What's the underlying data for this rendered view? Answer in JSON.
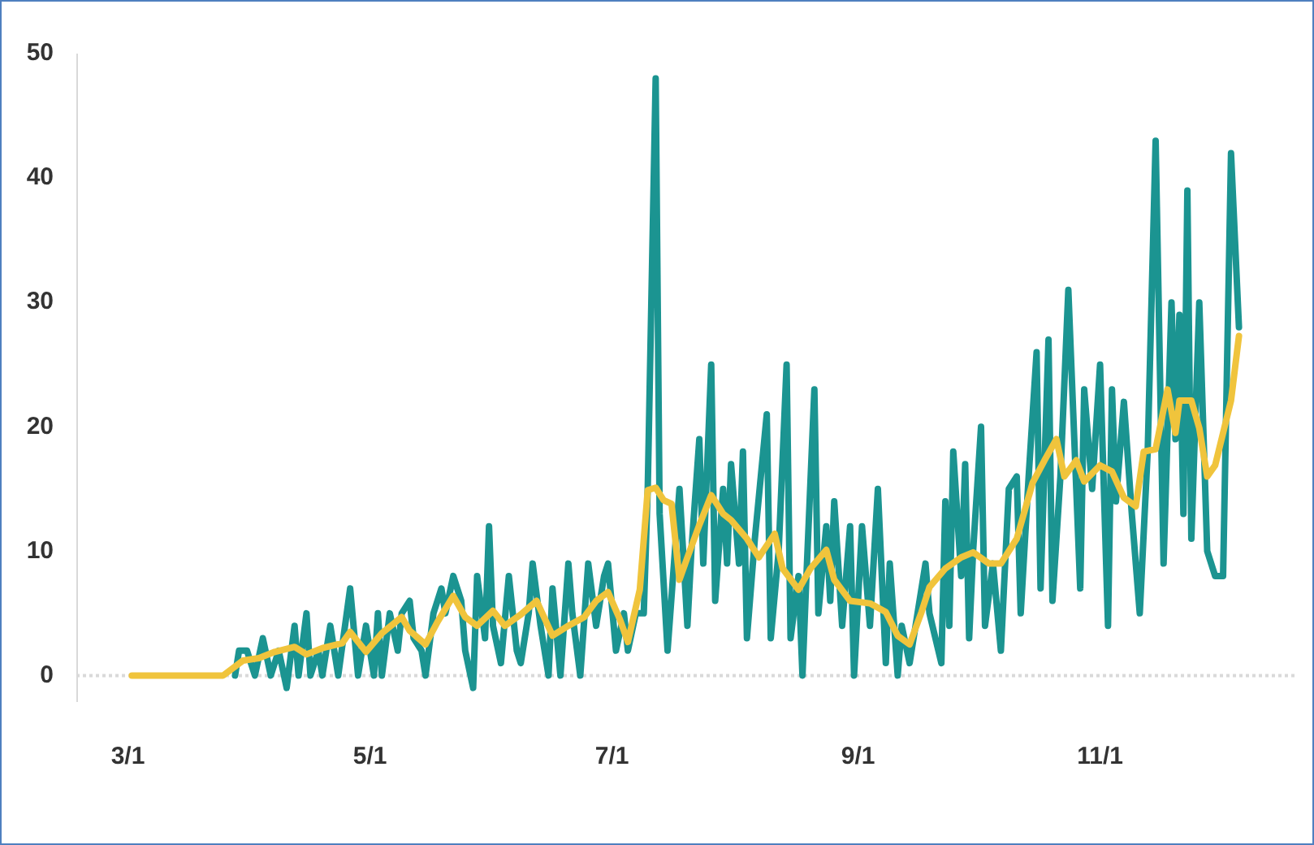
{
  "chart_data": {
    "type": "line",
    "xlim": [
      "--02-17",
      "--12-20"
    ],
    "xticks": [
      {
        "value": "--03-01",
        "label": "3/1"
      },
      {
        "value": "--05-01",
        "label": "5/1"
      },
      {
        "value": "--07-01",
        "label": "7/1"
      },
      {
        "value": "--09-01",
        "label": "9/1"
      },
      {
        "value": "--11-01",
        "label": "11/1"
      }
    ],
    "ylim": [
      -2,
      50
    ],
    "yticks": [
      0,
      10,
      20,
      30,
      40,
      50
    ],
    "line_style": "solid",
    "ref_lines": [
      {
        "axis": "y",
        "value": 0,
        "color": "#d9d9d9",
        "line_style": "dotted"
      }
    ],
    "series": [
      {
        "color": "#1b9491",
        "x": [
          "--03-28",
          "--03-29",
          "--03-31",
          "--04-02",
          "--04-04",
          "--04-06",
          "--04-08",
          "--04-10",
          "--04-12",
          "--04-13",
          "--04-15",
          "--04-16",
          "--04-18",
          "--04-19",
          "--04-21",
          "--04-23",
          "--04-26",
          "--04-28",
          "--04-30",
          "--05-02",
          "--05-03",
          "--05-04",
          "--05-06",
          "--05-08",
          "--05-09",
          "--05-11",
          "--05-12",
          "--05-14",
          "--05-15",
          "--05-17",
          "--05-19",
          "--05-20",
          "--05-22",
          "--05-24",
          "--05-25",
          "--05-27",
          "--05-28",
          "--05-30",
          "--05-31",
          "--06-01",
          "--06-03",
          "--06-05",
          "--06-07",
          "--06-08",
          "--06-10",
          "--06-11",
          "--06-13",
          "--06-15",
          "--06-16",
          "--06-18",
          "--06-20",
          "--06-21",
          "--06-23",
          "--06-25",
          "--06-27",
          "--06-29",
          "--06-30",
          "--07-02",
          "--07-04",
          "--07-05",
          "--07-07",
          "--07-09",
          "--07-10",
          "--07-12",
          "--07-13",
          "--07-15",
          "--07-18",
          "--07-20",
          "--07-21",
          "--07-23",
          "--07-24",
          "--07-26",
          "--07-27",
          "--07-29",
          "--07-30",
          "--07-31",
          "--08-02",
          "--08-03",
          "--08-04",
          "--08-06",
          "--08-09",
          "--08-10",
          "--08-12",
          "--08-14",
          "--08-15",
          "--08-17",
          "--08-18",
          "--08-19",
          "--08-21",
          "--08-22",
          "--08-24",
          "--08-25",
          "--08-26",
          "--08-28",
          "--08-30",
          "--08-31",
          "--09-02",
          "--09-04",
          "--09-06",
          "--09-08",
          "--09-09",
          "--09-11",
          "--09-12",
          "--09-14",
          "--09-18",
          "--09-19",
          "--09-22",
          "--09-23",
          "--09-24",
          "--09-25",
          "--09-27",
          "--09-28",
          "--09-29",
          "--09-30",
          "--10-02",
          "--10-03",
          "--10-05",
          "--10-07",
          "--10-09",
          "--10-11",
          "--10-12",
          "--10-14",
          "--10-16",
          "--10-17",
          "--10-19",
          "--10-20",
          "--10-22",
          "--10-24",
          "--10-26",
          "--10-27",
          "--10-28",
          "--10-30",
          "--11-01",
          "--11-03",
          "--11-04",
          "--11-05",
          "--11-07",
          "--11-09",
          "--11-11",
          "--11-13",
          "--11-15",
          "--11-17",
          "--11-19",
          "--11-20",
          "--11-21",
          "--11-22",
          "--11-23",
          "--11-24",
          "--11-26",
          "--11-28",
          "--11-30",
          "--12-02",
          "--12-04",
          "--12-06"
        ],
        "values": [
          0,
          2,
          2,
          0,
          3,
          0,
          2,
          -1,
          4,
          0,
          5,
          0,
          2,
          0,
          4,
          0,
          7,
          0,
          4,
          0,
          5,
          0,
          5,
          2,
          5,
          6,
          3,
          2,
          0,
          5,
          7,
          5,
          8,
          6,
          2,
          -1,
          8,
          3,
          12,
          4,
          1,
          8,
          2,
          1,
          5,
          9,
          4,
          0,
          7,
          0,
          9,
          5,
          0,
          9,
          4,
          8,
          9,
          2,
          5,
          2,
          5,
          5,
          15,
          48,
          13,
          2,
          15,
          4,
          10,
          19,
          9,
          25,
          6,
          15,
          9,
          17,
          9,
          18,
          3,
          11,
          21,
          3,
          10,
          25,
          3,
          8,
          0,
          8,
          23,
          5,
          12,
          6,
          14,
          4,
          12,
          0,
          12,
          4,
          15,
          1,
          9,
          0,
          4,
          1,
          9,
          5,
          1,
          14,
          4,
          18,
          8,
          17,
          3,
          10,
          20,
          4,
          9,
          2,
          15,
          16,
          5,
          16,
          26,
          7,
          27,
          6,
          16,
          31,
          15,
          7,
          23,
          15,
          25,
          4,
          23,
          14,
          22,
          13,
          5,
          18,
          43,
          9,
          30,
          19,
          29,
          13,
          39,
          11,
          30,
          10,
          8,
          8,
          42,
          28
        ]
      },
      {
        "color": "#f0c43c",
        "x": [
          "--03-02",
          "--03-25",
          "--03-30",
          "--04-03",
          "--04-07",
          "--04-12",
          "--04-15",
          "--04-19",
          "--04-24",
          "--04-26",
          "--04-30",
          "--05-04",
          "--05-09",
          "--05-11",
          "--05-15",
          "--05-18",
          "--05-22",
          "--05-25",
          "--05-28",
          "--06-01",
          "--06-04",
          "--06-08",
          "--06-12",
          "--06-16",
          "--06-20",
          "--06-24",
          "--06-27",
          "--06-30",
          "--07-03",
          "--07-05",
          "--07-08",
          "--07-10",
          "--07-12",
          "--07-14",
          "--07-16",
          "--07-18",
          "--07-20",
          "--07-23",
          "--07-26",
          "--07-29",
          "--07-31",
          "--08-04",
          "--08-07",
          "--08-11",
          "--08-13",
          "--08-17",
          "--08-20",
          "--08-24",
          "--08-26",
          "--08-30",
          "--09-04",
          "--09-08",
          "--09-11",
          "--09-14",
          "--09-17",
          "--09-19",
          "--09-23",
          "--09-27",
          "--09-30",
          "--10-04",
          "--10-07",
          "--10-11",
          "--10-15",
          "--10-18",
          "--10-21",
          "--10-23",
          "--10-26",
          "--10-28",
          "--11-01",
          "--11-04",
          "--11-07",
          "--11-10",
          "--11-12",
          "--11-15",
          "--11-18",
          "--11-20",
          "--11-21",
          "--11-24",
          "--11-26",
          "--11-28",
          "--11-30",
          "--12-04",
          "--12-06"
        ],
        "values": [
          0,
          0,
          1.2,
          1.4,
          1.9,
          2.3,
          1.7,
          2.2,
          2.6,
          3.5,
          1.9,
          3.4,
          4.7,
          3.6,
          2.5,
          4.3,
          6.4,
          4.7,
          4,
          5.2,
          4,
          4.9,
          6,
          3.2,
          4,
          4.7,
          6,
          6.7,
          4.5,
          2.7,
          6.9,
          14.9,
          15.1,
          14.1,
          13.8,
          7.7,
          9.5,
          12.1,
          14.5,
          13,
          12.5,
          11,
          9.5,
          11.4,
          8.6,
          6.9,
          8.6,
          10.1,
          7.7,
          6,
          5.8,
          5.1,
          3.2,
          2.5,
          5.1,
          7.1,
          8.6,
          9.5,
          9.9,
          9,
          9,
          11,
          15.5,
          17.3,
          19,
          16,
          17.3,
          15.6,
          16.9,
          16.4,
          14.3,
          13.6,
          18,
          18.2,
          23,
          19.5,
          22.1,
          22.1,
          19.9,
          16,
          16.9,
          22.1,
          27.3
        ]
      }
    ]
  }
}
